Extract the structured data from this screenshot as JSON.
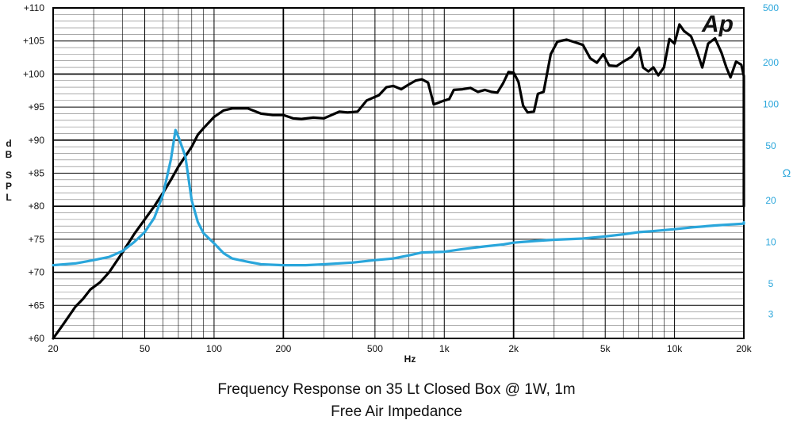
{
  "chart_data": {
    "type": "line",
    "title": "Frequency Response on 35 Lt Closed Box @ 1W, 1m",
    "subtitle": "Free Air Impedance",
    "xlabel": "Hz",
    "ylabel_left": "dB SPL",
    "ylabel_right": "Ω",
    "logo": "Ap",
    "x_scale": "log",
    "xlim": [
      20,
      20000
    ],
    "ylim_left": [
      60,
      110
    ],
    "ylim_right": [
      2,
      500
    ],
    "y_right_scale": "log",
    "grid": true,
    "x_ticks": [
      {
        "value": 20,
        "label": "20"
      },
      {
        "value": 50,
        "label": "50"
      },
      {
        "value": 100,
        "label": "100"
      },
      {
        "value": 200,
        "label": "200"
      },
      {
        "value": 500,
        "label": "500"
      },
      {
        "value": 1000,
        "label": "1k"
      },
      {
        "value": 2000,
        "label": "2k"
      },
      {
        "value": 5000,
        "label": "5k"
      },
      {
        "value": 10000,
        "label": "10k"
      },
      {
        "value": 20000,
        "label": "20k"
      }
    ],
    "y_left_ticks": [
      {
        "value": 60,
        "label": "+60"
      },
      {
        "value": 65,
        "label": "+65"
      },
      {
        "value": 70,
        "label": "+70"
      },
      {
        "value": 75,
        "label": "+75"
      },
      {
        "value": 80,
        "label": "+80"
      },
      {
        "value": 85,
        "label": "+85"
      },
      {
        "value": 90,
        "label": "+90"
      },
      {
        "value": 95,
        "label": "+95"
      },
      {
        "value": 100,
        "label": "+100"
      },
      {
        "value": 105,
        "label": "+105"
      },
      {
        "value": 110,
        "label": "+110"
      }
    ],
    "y_right_ticks": [
      {
        "value": 3,
        "label": "3"
      },
      {
        "value": 5,
        "label": "5"
      },
      {
        "value": 10,
        "label": "10"
      },
      {
        "value": 20,
        "label": "20"
      },
      {
        "value": 50,
        "label": "50"
      },
      {
        "value": 100,
        "label": "100"
      },
      {
        "value": 200,
        "label": "200"
      },
      {
        "value": 500,
        "label": "500"
      }
    ],
    "series": [
      {
        "axis": "left",
        "color": "#000000",
        "points": [
          [
            20,
            60.0
          ],
          [
            22,
            62.0
          ],
          [
            25,
            64.8
          ],
          [
            27,
            66.0
          ],
          [
            29,
            67.4
          ],
          [
            32,
            68.5
          ],
          [
            35,
            70.0
          ],
          [
            40,
            73.0
          ],
          [
            45,
            75.8
          ],
          [
            50,
            78.0
          ],
          [
            55,
            80.0
          ],
          [
            60,
            82.0
          ],
          [
            65,
            84.0
          ],
          [
            70,
            86.0
          ],
          [
            80,
            89.0
          ],
          [
            85,
            90.8
          ],
          [
            90,
            91.8
          ],
          [
            100,
            93.5
          ],
          [
            110,
            94.5
          ],
          [
            120,
            94.8
          ],
          [
            140,
            94.8
          ],
          [
            160,
            94.0
          ],
          [
            180,
            93.8
          ],
          [
            200,
            93.8
          ],
          [
            220,
            93.3
          ],
          [
            240,
            93.2
          ],
          [
            270,
            93.4
          ],
          [
            300,
            93.3
          ],
          [
            350,
            94.3
          ],
          [
            380,
            94.2
          ],
          [
            420,
            94.3
          ],
          [
            460,
            96.0
          ],
          [
            520,
            96.8
          ],
          [
            560,
            98.0
          ],
          [
            600,
            98.2
          ],
          [
            650,
            97.7
          ],
          [
            700,
            98.4
          ],
          [
            750,
            99.0
          ],
          [
            800,
            99.2
          ],
          [
            850,
            98.7
          ],
          [
            900,
            95.4
          ],
          [
            950,
            95.7
          ],
          [
            1000,
            96.0
          ],
          [
            1050,
            96.2
          ],
          [
            1100,
            97.6
          ],
          [
            1200,
            97.7
          ],
          [
            1300,
            97.9
          ],
          [
            1400,
            97.3
          ],
          [
            1500,
            97.6
          ],
          [
            1600,
            97.3
          ],
          [
            1700,
            97.2
          ],
          [
            1800,
            98.6
          ],
          [
            1900,
            100.3
          ],
          [
            2000,
            100.2
          ],
          [
            2100,
            98.8
          ],
          [
            2200,
            95.2
          ],
          [
            2300,
            94.2
          ],
          [
            2450,
            94.3
          ],
          [
            2550,
            97.0
          ],
          [
            2700,
            97.3
          ],
          [
            2900,
            103.0
          ],
          [
            3100,
            104.9
          ],
          [
            3400,
            105.2
          ],
          [
            3700,
            104.8
          ],
          [
            4000,
            104.4
          ],
          [
            4300,
            102.4
          ],
          [
            4600,
            101.7
          ],
          [
            4900,
            103.0
          ],
          [
            5200,
            101.3
          ],
          [
            5600,
            101.2
          ],
          [
            6000,
            101.9
          ],
          [
            6500,
            102.6
          ],
          [
            7000,
            104.0
          ],
          [
            7300,
            101.0
          ],
          [
            7700,
            100.4
          ],
          [
            8100,
            101.0
          ],
          [
            8500,
            99.8
          ],
          [
            9000,
            101.0
          ],
          [
            9500,
            105.3
          ],
          [
            10000,
            104.6
          ],
          [
            10500,
            107.5
          ],
          [
            11000,
            106.5
          ],
          [
            11800,
            105.7
          ],
          [
            12500,
            103.5
          ],
          [
            13200,
            101.0
          ],
          [
            14000,
            104.6
          ],
          [
            15000,
            105.4
          ],
          [
            16000,
            103.2
          ],
          [
            16800,
            101.0
          ],
          [
            17500,
            99.5
          ],
          [
            18500,
            101.9
          ],
          [
            19500,
            101.4
          ],
          [
            20500,
            99.7
          ],
          [
            21700,
            88.9
          ],
          [
            22700,
            86.2
          ],
          [
            23700,
            84.3
          ],
          [
            25000,
            80.0
          ]
        ]
      },
      {
        "axis": "right",
        "color": "#2aa6db",
        "points": [
          [
            20,
            6.8
          ],
          [
            25,
            7.0
          ],
          [
            30,
            7.4
          ],
          [
            35,
            7.8
          ],
          [
            40,
            8.6
          ],
          [
            45,
            10.0
          ],
          [
            50,
            11.8
          ],
          [
            55,
            15.0
          ],
          [
            60,
            22.0
          ],
          [
            65,
            40.0
          ],
          [
            68,
            65.0
          ],
          [
            70,
            58.0
          ],
          [
            75,
            42.0
          ],
          [
            80,
            20.0
          ],
          [
            85,
            14.0
          ],
          [
            90,
            11.6
          ],
          [
            100,
            9.8
          ],
          [
            110,
            8.3
          ],
          [
            120,
            7.6
          ],
          [
            140,
            7.2
          ],
          [
            160,
            6.9
          ],
          [
            200,
            6.8
          ],
          [
            250,
            6.8
          ],
          [
            300,
            6.9
          ],
          [
            400,
            7.1
          ],
          [
            500,
            7.4
          ],
          [
            600,
            7.6
          ],
          [
            700,
            8.0
          ],
          [
            800,
            8.4
          ],
          [
            1000,
            8.5
          ],
          [
            1200,
            8.9
          ],
          [
            1500,
            9.3
          ],
          [
            1800,
            9.6
          ],
          [
            2000,
            9.9
          ],
          [
            2500,
            10.2
          ],
          [
            3000,
            10.4
          ],
          [
            4000,
            10.6
          ],
          [
            5000,
            11.0
          ],
          [
            6000,
            11.4
          ],
          [
            7000,
            11.8
          ],
          [
            8000,
            12.0
          ],
          [
            10000,
            12.4
          ],
          [
            12000,
            12.8
          ],
          [
            15000,
            13.2
          ],
          [
            20000,
            13.6
          ],
          [
            25000,
            13.9
          ]
        ]
      }
    ]
  }
}
